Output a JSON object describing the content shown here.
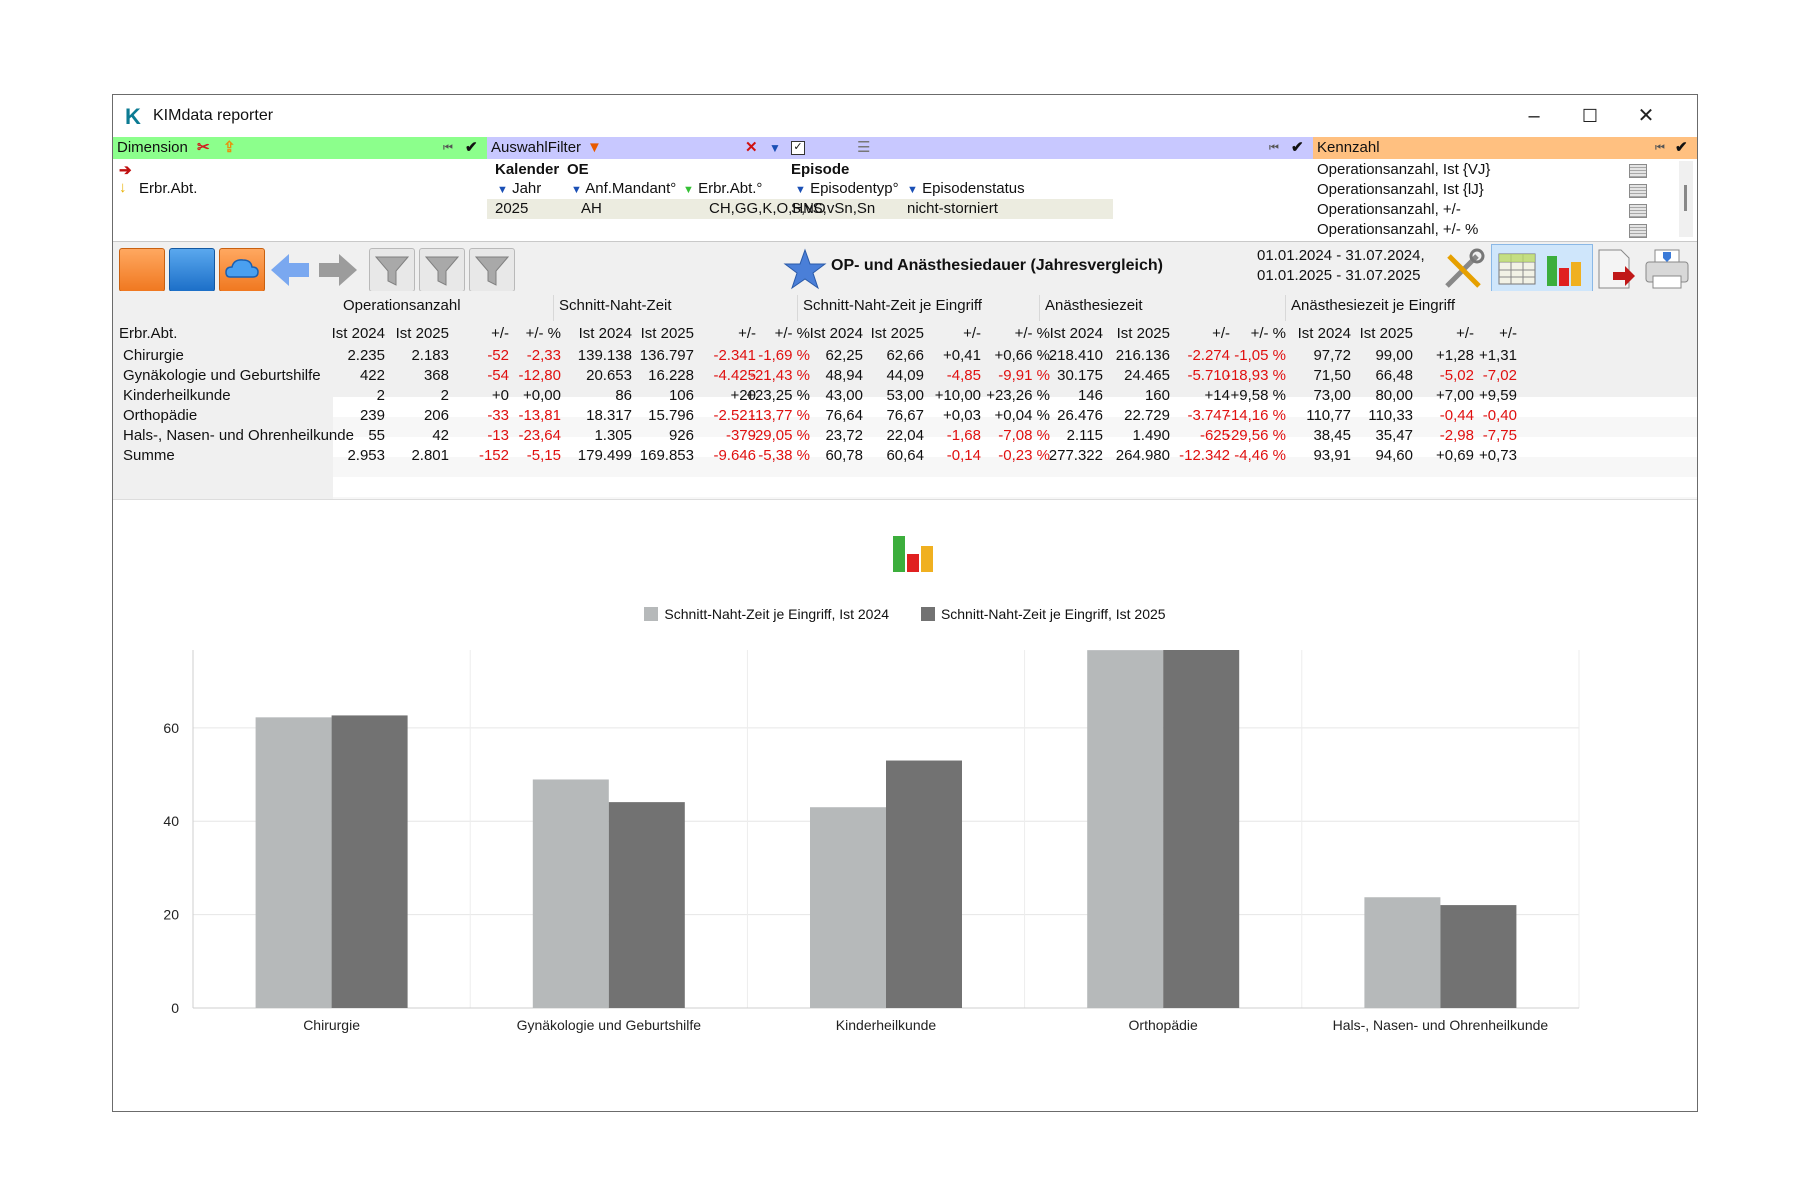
{
  "window": {
    "title": "KIMdata reporter",
    "logo_letter": "K"
  },
  "window_controls": {
    "minimize": "–",
    "maximize": "☐",
    "close": "✕"
  },
  "dimension_panel": {
    "header": "Dimension",
    "header_color": "#8cff8c",
    "items": [
      "Erbr.Abt."
    ]
  },
  "filter_panel": {
    "header": "AuswahlFilter",
    "header_color": "#c8c8ff",
    "groups": [
      "Kalender",
      "OE",
      "Episode"
    ],
    "fields": [
      "Jahr",
      "Anf.Mandant°",
      "Erbr.Abt.°",
      "Episodentyp°",
      "Episodenstatus"
    ],
    "values": [
      "2025",
      "AH",
      "CH,GG,K,O,HNO",
      "S,vS,vSn,Sn",
      "nicht-storniert"
    ]
  },
  "kennzahl_panel": {
    "header": "Kennzahl",
    "header_color": "#ffc080",
    "items": [
      "Operationsanzahl, Ist {VJ}",
      "Operationsanzahl, Ist {lJ}",
      "Operationsanzahl, +/-",
      "Operationsanzahl, +/- %"
    ]
  },
  "report": {
    "title": "OP- und Anästhesiedauer (Jahresvergleich)",
    "period1": "01.01.2024 - 31.07.2024,",
    "period2": "01.01.2025 - 31.07.2025"
  },
  "table": {
    "row_header": "Erbr.Abt.",
    "groups": [
      "Operationsanzahl",
      "Schnitt-Naht-Zeit",
      "Schnitt-Naht-Zeit je Eingriff",
      "Anästhesiezeit",
      "Anästhesiezeit je Eingriff"
    ],
    "subheaders": [
      "Ist 2024",
      "Ist 2025",
      "+/-",
      "+/- %",
      "Ist 2024",
      "Ist 2025",
      "+/-",
      "+/- %",
      "Ist 2024",
      "Ist 2025",
      "+/-",
      "+/- %",
      "Ist 2024",
      "Ist 2025",
      "+/-",
      "+/- %",
      "Ist 2024",
      "Ist 2025",
      "+/-",
      "+/-"
    ],
    "rows": [
      {
        "label": "Chirurgie",
        "cells": [
          "2.235",
          "2.183",
          "-52",
          "-2,33",
          "139.138",
          "136.797",
          "-2.341",
          "-1,69 %",
          "62,25",
          "62,66",
          "+0,41",
          "+0,66 %",
          "218.410",
          "216.136",
          "-2.274",
          "-1,05 %",
          "97,72",
          "99,00",
          "+1,28",
          "+1,31"
        ]
      },
      {
        "label": "Gynäkologie und Geburtshilfe",
        "cells": [
          "422",
          "368",
          "-54",
          "-12,80",
          "20.653",
          "16.228",
          "-4.425",
          "-21,43 %",
          "48,94",
          "44,09",
          "-4,85",
          "-9,91 %",
          "30.175",
          "24.465",
          "-5.710",
          "-18,93 %",
          "71,50",
          "66,48",
          "-5,02",
          "-7,02"
        ]
      },
      {
        "label": "Kinderheilkunde",
        "cells": [
          "2",
          "2",
          "+0",
          "+0,00",
          "86",
          "106",
          "+20",
          "+23,25 %",
          "43,00",
          "53,00",
          "+10,00",
          "+23,26 %",
          "146",
          "160",
          "+14",
          "+9,58 %",
          "73,00",
          "80,00",
          "+7,00",
          "+9,59"
        ]
      },
      {
        "label": "Orthopädie",
        "cells": [
          "239",
          "206",
          "-33",
          "-13,81",
          "18.317",
          "15.796",
          "-2.521",
          "-13,77 %",
          "76,64",
          "76,67",
          "+0,03",
          "+0,04 %",
          "26.476",
          "22.729",
          "-3.747",
          "-14,16 %",
          "110,77",
          "110,33",
          "-0,44",
          "-0,40"
        ]
      },
      {
        "label": "Hals-, Nasen- und Ohrenheilkunde",
        "cells": [
          "55",
          "42",
          "-13",
          "-23,64",
          "1.305",
          "926",
          "-379",
          "-29,05 %",
          "23,72",
          "22,04",
          "-1,68",
          "-7,08 %",
          "2.115",
          "1.490",
          "-625",
          "-29,56 %",
          "38,45",
          "35,47",
          "-2,98",
          "-7,75"
        ]
      },
      {
        "label": "Summe",
        "cells": [
          "2.953",
          "2.801",
          "-152",
          "-5,15",
          "179.499",
          "169.853",
          "-9.646",
          "-5,38 %",
          "60,78",
          "60,64",
          "-0,14",
          "-0,23 %",
          "277.322",
          "264.980",
          "-12.342",
          "-4,46 %",
          "93,91",
          "94,60",
          "+0,69",
          "+0,73"
        ]
      }
    ]
  },
  "chart_data": {
    "type": "bar",
    "categories": [
      "Chirurgie",
      "Gynäkologie und Geburtshilfe",
      "Kinderheilkunde",
      "Orthopädie",
      "Hals-, Nasen- und Ohrenheilkunde"
    ],
    "series": [
      {
        "name": "Schnitt-Naht-Zeit je Eingriff, Ist 2024",
        "values": [
          62.25,
          48.94,
          43.0,
          76.64,
          23.72
        ],
        "color": "#b6b9ba"
      },
      {
        "name": "Schnitt-Naht-Zeit je Eingriff, Ist 2025",
        "values": [
          62.66,
          44.09,
          53.0,
          76.67,
          22.04
        ],
        "color": "#727272"
      }
    ],
    "yticks": [
      0,
      20,
      40,
      60
    ],
    "ylim": [
      0,
      76.67
    ],
    "legend": "top",
    "grid": true
  }
}
